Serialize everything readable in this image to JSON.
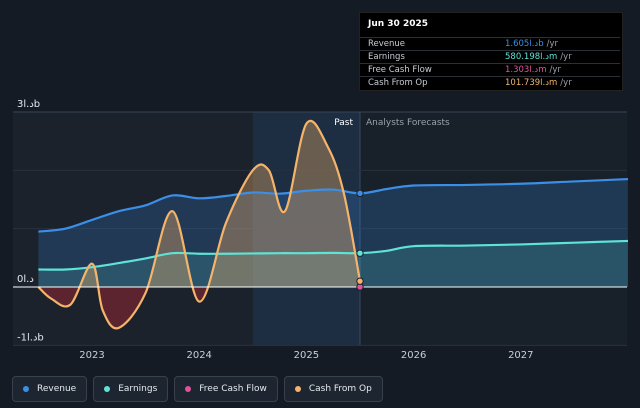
{
  "tooltip": {
    "date": "Jun 30 2025",
    "rows": [
      {
        "label": "Revenue",
        "value": "1.605د.اb",
        "unit": "/yr",
        "color": "#3b8fe6"
      },
      {
        "label": "Earnings",
        "value": "580.198د.اm",
        "unit": "/yr",
        "color": "#5fe3d6"
      },
      {
        "label": "Free Cash Flow",
        "value": "1.303د.اm",
        "unit": "/yr",
        "color": "#e0529a"
      },
      {
        "label": "Cash From Op",
        "value": "101.739د.اm",
        "unit": "/yr",
        "color": "#f5b46a"
      }
    ]
  },
  "legend": [
    {
      "label": "Revenue",
      "color": "#3b8fe6"
    },
    {
      "label": "Earnings",
      "color": "#5fe3d6"
    },
    {
      "label": "Free Cash Flow",
      "color": "#e0529a"
    },
    {
      "label": "Cash From Op",
      "color": "#f5b46a"
    }
  ],
  "chart_data": {
    "type": "line",
    "region_labels": {
      "past": "Past",
      "forecast": "Analysts Forecasts"
    },
    "y_ticks": [
      {
        "label": "3د.اb",
        "value": 3000
      },
      {
        "label": "0د.ا",
        "value": 0
      },
      {
        "label": "-1د.اb",
        "value": -1000
      }
    ],
    "x_ticks": [
      "2023",
      "2024",
      "2025",
      "2026",
      "2027"
    ],
    "ylim": [
      -1000,
      3000
    ],
    "xlim": [
      2022.3,
      2028.0
    ],
    "divider_x": 2025.5,
    "highlight_start_x": 2024.5,
    "series": [
      {
        "name": "Revenue",
        "color": "#3b8fe6",
        "points": [
          [
            2022.5,
            950
          ],
          [
            2022.75,
            1000
          ],
          [
            2023.0,
            1150
          ],
          [
            2023.25,
            1300
          ],
          [
            2023.5,
            1400
          ],
          [
            2023.75,
            1570
          ],
          [
            2024.0,
            1520
          ],
          [
            2024.25,
            1560
          ],
          [
            2024.5,
            1620
          ],
          [
            2024.75,
            1600
          ],
          [
            2025.0,
            1650
          ],
          [
            2025.25,
            1670
          ],
          [
            2025.5,
            1605
          ],
          [
            2025.75,
            1680
          ],
          [
            2026.0,
            1740
          ],
          [
            2026.5,
            1750
          ],
          [
            2027.0,
            1770
          ],
          [
            2027.5,
            1810
          ],
          [
            2028.0,
            1850
          ]
        ]
      },
      {
        "name": "Earnings",
        "color": "#5fe3d6",
        "points": [
          [
            2022.5,
            300
          ],
          [
            2022.75,
            300
          ],
          [
            2023.0,
            340
          ],
          [
            2023.25,
            410
          ],
          [
            2023.5,
            490
          ],
          [
            2023.75,
            580
          ],
          [
            2024.0,
            570
          ],
          [
            2024.25,
            570
          ],
          [
            2024.5,
            575
          ],
          [
            2024.75,
            580
          ],
          [
            2025.0,
            580
          ],
          [
            2025.25,
            585
          ],
          [
            2025.5,
            580
          ],
          [
            2025.75,
            620
          ],
          [
            2026.0,
            700
          ],
          [
            2026.5,
            710
          ],
          [
            2027.0,
            730
          ],
          [
            2027.5,
            760
          ],
          [
            2028.0,
            790
          ]
        ]
      },
      {
        "name": "Free Cash Flow",
        "color": "#e0529a",
        "points": [
          [
            2025.5,
            1.3
          ]
        ]
      },
      {
        "name": "Cash From Op",
        "color": "#f5b46a",
        "points": [
          [
            2022.5,
            0
          ],
          [
            2022.62,
            -200
          ],
          [
            2022.8,
            -300
          ],
          [
            2023.0,
            400
          ],
          [
            2023.1,
            -400
          ],
          [
            2023.25,
            -700
          ],
          [
            2023.5,
            -100
          ],
          [
            2023.75,
            1300
          ],
          [
            2024.0,
            -250
          ],
          [
            2024.25,
            1100
          ],
          [
            2024.5,
            2000
          ],
          [
            2024.65,
            2000
          ],
          [
            2024.8,
            1300
          ],
          [
            2025.0,
            2800
          ],
          [
            2025.2,
            2400
          ],
          [
            2025.35,
            1600
          ],
          [
            2025.5,
            100
          ]
        ]
      }
    ]
  }
}
